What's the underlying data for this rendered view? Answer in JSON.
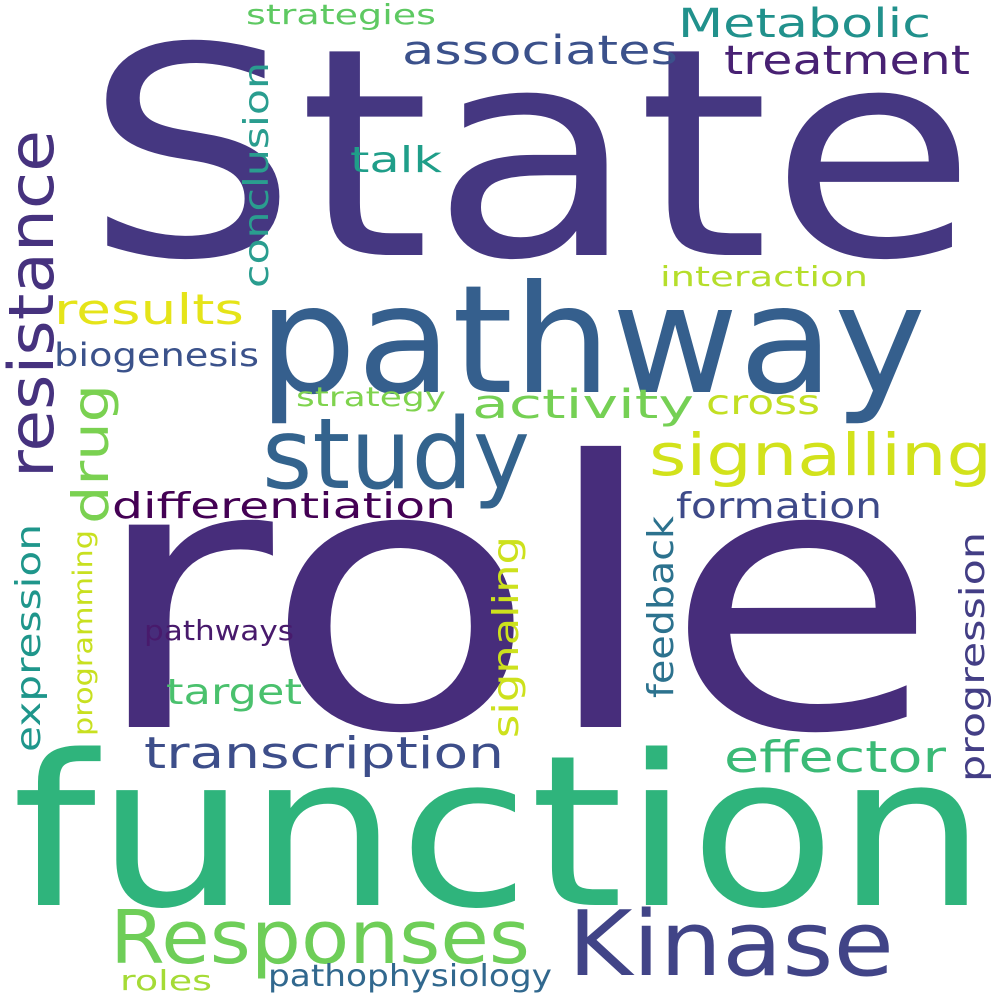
{
  "words": [
    {
      "text": "State",
      "color": "#453781"
    },
    {
      "text": "role",
      "color": "#472d7b"
    },
    {
      "text": "function",
      "color": "#2fb47c"
    },
    {
      "text": "pathway",
      "color": "#355f8d"
    },
    {
      "text": "study",
      "color": "#33638d"
    },
    {
      "text": "Kinase",
      "color": "#414487"
    },
    {
      "text": "Responses",
      "color": "#6ece58"
    },
    {
      "text": "signalling",
      "color": "#d2e21b"
    },
    {
      "text": "resistance",
      "color": "#46327e"
    },
    {
      "text": "drug",
      "color": "#7ad151"
    },
    {
      "text": "Metabolic",
      "color": "#21918c"
    },
    {
      "text": "associates",
      "color": "#3b518b"
    },
    {
      "text": "treatment",
      "color": "#482173"
    },
    {
      "text": "conclusion",
      "color": "#2a9d8f"
    },
    {
      "text": "talk",
      "color": "#1f9e89"
    },
    {
      "text": "results",
      "color": "#e5e419"
    },
    {
      "text": "biogenesis",
      "color": "#3b528b"
    },
    {
      "text": "interaction",
      "color": "#b5de2b"
    },
    {
      "text": "strategy",
      "color": "#7fd34e"
    },
    {
      "text": "activity",
      "color": "#75d054"
    },
    {
      "text": "cross",
      "color": "#c2df23"
    },
    {
      "text": "differentiation",
      "color": "#440154"
    },
    {
      "text": "formation",
      "color": "#3e4a89"
    },
    {
      "text": "expression",
      "color": "#1f968b"
    },
    {
      "text": "programming",
      "color": "#c8e020"
    },
    {
      "text": "pathways",
      "color": "#481a6c"
    },
    {
      "text": "signaling",
      "color": "#cde11d"
    },
    {
      "text": "feedback",
      "color": "#2c728e"
    },
    {
      "text": "progression",
      "color": "#433e85"
    },
    {
      "text": "target",
      "color": "#4ac16d"
    },
    {
      "text": "transcription",
      "color": "#3d4e8a"
    },
    {
      "text": "effector",
      "color": "#3aba76"
    },
    {
      "text": "strategies",
      "color": "#5ec962"
    },
    {
      "text": "roles",
      "color": "#a5db36"
    },
    {
      "text": "pathophysiology",
      "color": "#31688e"
    }
  ]
}
